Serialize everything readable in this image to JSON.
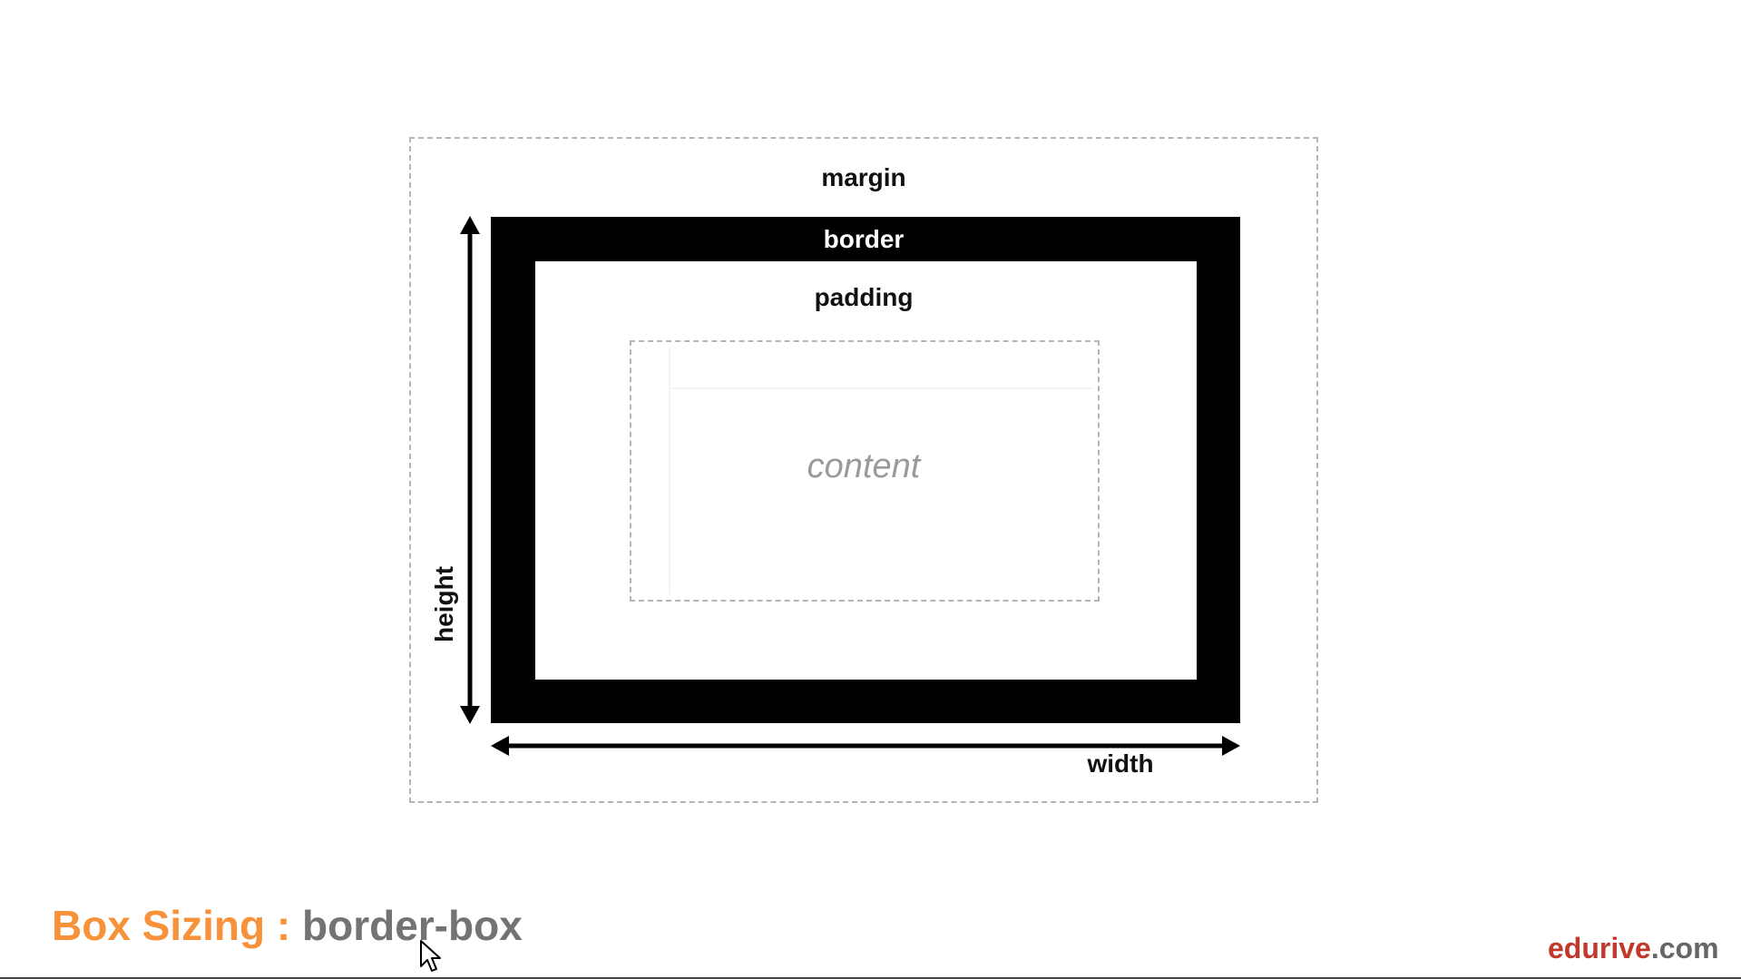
{
  "diagram": {
    "labels": {
      "margin": "margin",
      "border": "border",
      "padding": "padding",
      "content": "content",
      "width": "width",
      "height": "height"
    },
    "colors": {
      "border_fill": "#000000",
      "dashed_outline": "#b5b5b5",
      "content_text": "#9a9a9a"
    }
  },
  "footer": {
    "title_prefix": "Box Sizing : ",
    "title_value": "border-box",
    "colors": {
      "prefix": "#f7923a",
      "value": "#737373"
    }
  },
  "brand": {
    "name_part1": "edurive",
    "name_part2": ".com",
    "colors": {
      "part1": "#c0392b",
      "part2": "#666666"
    }
  },
  "cursor": {
    "icon": "mouse-pointer-icon"
  }
}
